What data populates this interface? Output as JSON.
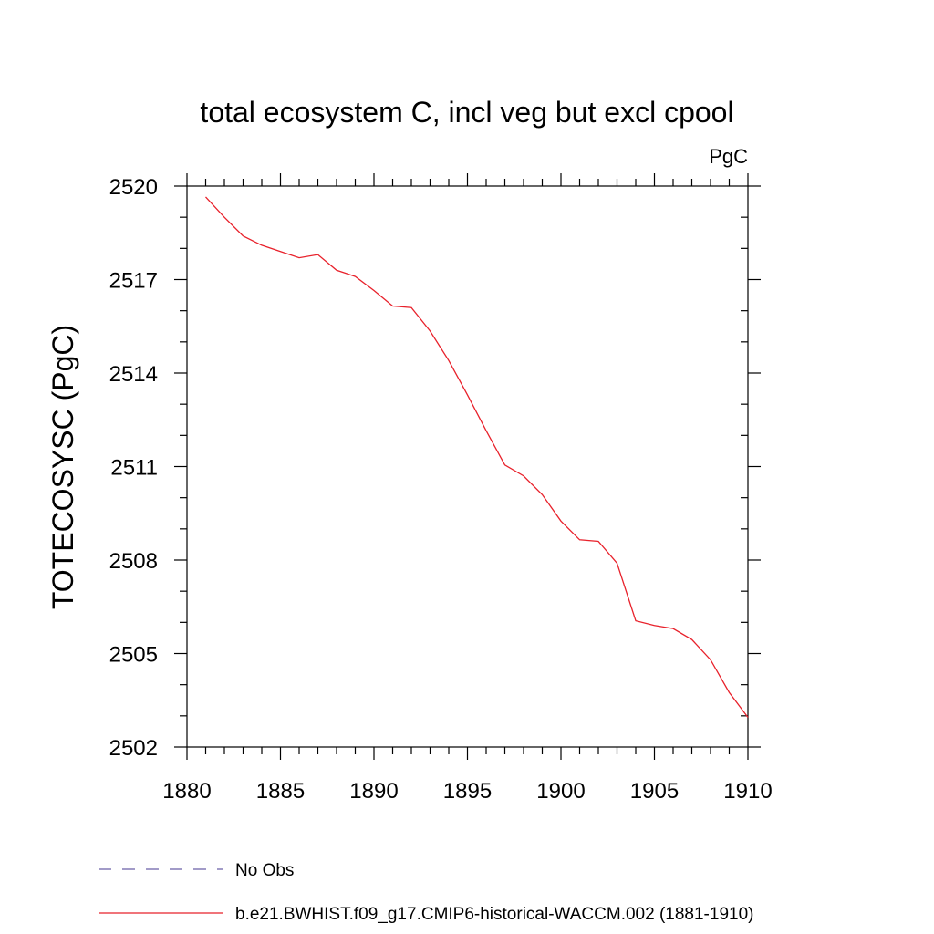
{
  "chart_data": {
    "type": "line",
    "title": "total ecosystem C, incl veg but excl cpool",
    "units": "PgC",
    "ylabel": "TOTECOSYSC  (PgC)",
    "xlabel": "",
    "xlim": [
      1880,
      1910
    ],
    "ylim": [
      2502,
      2520
    ],
    "x_ticks": [
      1880,
      1885,
      1890,
      1895,
      1900,
      1905,
      1910
    ],
    "x_tick_labels": [
      "1880",
      "1885",
      "1890",
      "1895",
      "1900",
      "1905",
      "1910"
    ],
    "x_minor_step": 1,
    "y_ticks": [
      2502,
      2505,
      2508,
      2511,
      2514,
      2517,
      2520
    ],
    "y_tick_labels": [
      "2502",
      "2505",
      "2508",
      "2511",
      "2514",
      "2517",
      "2520"
    ],
    "y_minor_step": 1,
    "grid": false,
    "legend_position": "bottom-left",
    "series": [
      {
        "name": "No Obs",
        "color": "#6b5fa8",
        "style": "dashed",
        "x": [],
        "y": []
      },
      {
        "name": "b.e21.BWHIST.f09_g17.CMIP6-historical-WACCM.002 (1881-1910)",
        "color": "#e8212b",
        "style": "solid",
        "x": [
          1881,
          1882,
          1883,
          1884,
          1885,
          1886,
          1887,
          1888,
          1889,
          1890,
          1891,
          1892,
          1893,
          1894,
          1895,
          1896,
          1897,
          1898,
          1899,
          1900,
          1901,
          1902,
          1903,
          1904,
          1905,
          1906,
          1907,
          1908,
          1909,
          1910
        ],
        "y": [
          2519.65,
          2519.0,
          2518.4,
          2518.1,
          2517.9,
          2517.7,
          2517.8,
          2517.3,
          2517.1,
          2516.65,
          2516.15,
          2516.1,
          2515.35,
          2514.4,
          2513.3,
          2512.15,
          2511.05,
          2510.7,
          2510.1,
          2509.25,
          2508.65,
          2508.6,
          2507.9,
          2506.05,
          2505.9,
          2505.8,
          2505.45,
          2504.8,
          2503.75,
          2502.95
        ]
      }
    ]
  }
}
